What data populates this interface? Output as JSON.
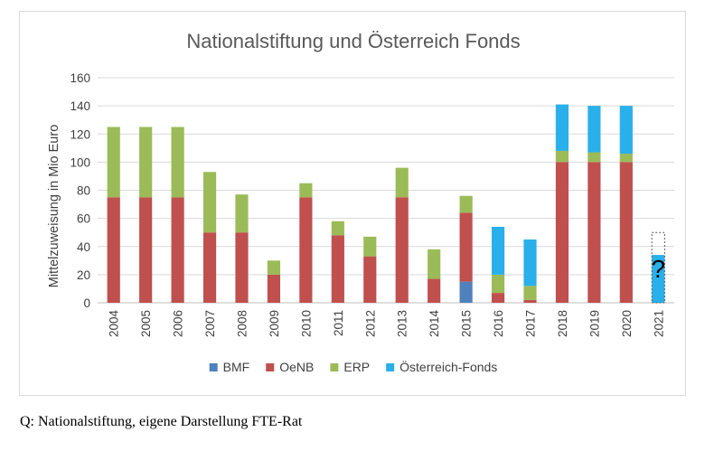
{
  "chart_data": {
    "type": "bar",
    "stacked": true,
    "title": "Nationalstiftung und Österreich Fonds",
    "ylabel": "Mittelzuweisung in Mio Euro",
    "xlabel": "",
    "ylim": [
      0,
      160
    ],
    "yticks": [
      0,
      20,
      40,
      60,
      80,
      100,
      120,
      140,
      160
    ],
    "grid": true,
    "legend_position": "bottom",
    "categories": [
      "2004",
      "2005",
      "2006",
      "2007",
      "2008",
      "2009",
      "2010",
      "2011",
      "2012",
      "2013",
      "2014",
      "2015",
      "2016",
      "2017",
      "2018",
      "2019",
      "2020",
      "2021"
    ],
    "series": [
      {
        "name": "BMF",
        "color": "#4f81bd",
        "values": [
          0,
          0,
          0,
          0,
          0,
          0,
          0,
          0,
          0,
          0,
          0,
          15,
          0,
          0,
          0,
          0,
          0,
          0
        ]
      },
      {
        "name": "OeNB",
        "color": "#c0504d",
        "values": [
          75,
          75,
          75,
          50,
          50,
          20,
          75,
          48,
          33,
          75,
          17,
          49,
          7,
          2,
          100,
          100,
          100,
          0
        ]
      },
      {
        "name": "ERP",
        "color": "#9bbb59",
        "values": [
          50,
          50,
          50,
          43,
          27,
          10,
          10,
          10,
          14,
          21,
          21,
          12,
          13,
          10,
          8,
          7,
          6,
          0
        ]
      },
      {
        "name": "Österreich-Fonds",
        "color": "#29b0ea",
        "values": [
          0,
          0,
          0,
          0,
          0,
          0,
          0,
          0,
          0,
          0,
          0,
          0,
          34,
          33,
          33,
          33,
          34,
          34
        ]
      }
    ],
    "annotations": [
      {
        "category": "2021",
        "text": "?",
        "range": [
          0,
          50
        ],
        "style": "dotted box"
      }
    ]
  },
  "source_note": "Q: Nationalstiftung, eigene Darstellung FTE-Rat"
}
